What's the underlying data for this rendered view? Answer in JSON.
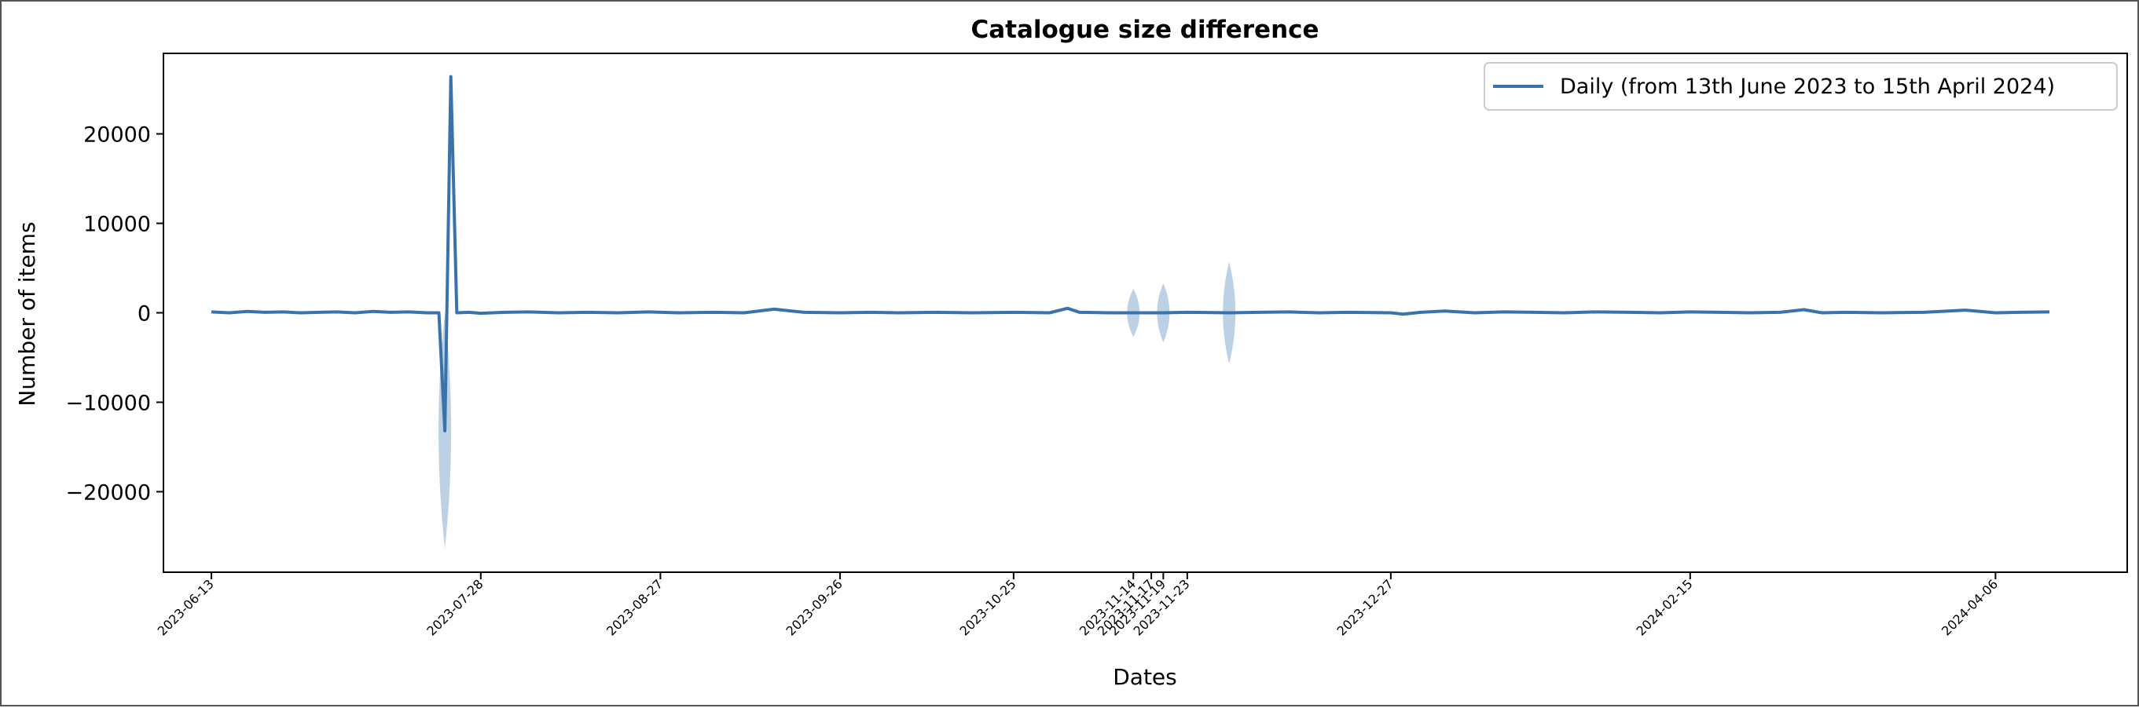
{
  "chart_data": {
    "type": "line",
    "title": "Catalogue size difference",
    "xlabel": "Dates",
    "ylabel": "Number of items",
    "xlim": [
      "2023-06-05",
      "2024-04-28"
    ],
    "ylim": [
      -29000,
      29000
    ],
    "yticks": [
      -20000,
      -10000,
      0,
      10000,
      20000
    ],
    "ytick_labels": [
      "−20000",
      "−10000",
      "0",
      "10000",
      "20000"
    ],
    "xticks": [
      "2023-06-13",
      "2023-07-28",
      "2023-08-27",
      "2023-09-26",
      "2023-10-25",
      "2023-11-14",
      "2023-11-17",
      "2023-11-19",
      "2023-11-23",
      "2023-12-27",
      "2024-02-15",
      "2024-04-06"
    ],
    "grid": false,
    "legend_position": "top-right",
    "series": [
      {
        "name": "Daily (from 13th June 2023 to 15th April 2024)",
        "color": "#3a72ab",
        "points": [
          [
            "2023-06-13",
            100
          ],
          [
            "2023-06-16",
            0
          ],
          [
            "2023-06-19",
            150
          ],
          [
            "2023-06-22",
            50
          ],
          [
            "2023-06-25",
            100
          ],
          [
            "2023-06-28",
            0
          ],
          [
            "2023-07-01",
            50
          ],
          [
            "2023-07-04",
            100
          ],
          [
            "2023-07-07",
            0
          ],
          [
            "2023-07-10",
            150
          ],
          [
            "2023-07-13",
            50
          ],
          [
            "2023-07-16",
            100
          ],
          [
            "2023-07-19",
            0
          ],
          [
            "2023-07-21",
            0
          ],
          [
            "2023-07-22",
            -13200
          ],
          [
            "2023-07-23",
            26400
          ],
          [
            "2023-07-24",
            0
          ],
          [
            "2023-07-26",
            50
          ],
          [
            "2023-07-28",
            -50
          ],
          [
            "2023-08-01",
            50
          ],
          [
            "2023-08-05",
            100
          ],
          [
            "2023-08-10",
            0
          ],
          [
            "2023-08-15",
            50
          ],
          [
            "2023-08-20",
            0
          ],
          [
            "2023-08-25",
            100
          ],
          [
            "2023-08-30",
            0
          ],
          [
            "2023-09-05",
            50
          ],
          [
            "2023-09-10",
            0
          ],
          [
            "2023-09-15",
            400
          ],
          [
            "2023-09-20",
            50
          ],
          [
            "2023-09-26",
            0
          ],
          [
            "2023-10-01",
            50
          ],
          [
            "2023-10-06",
            0
          ],
          [
            "2023-10-12",
            50
          ],
          [
            "2023-10-18",
            0
          ],
          [
            "2023-10-25",
            50
          ],
          [
            "2023-10-31",
            0
          ],
          [
            "2023-11-03",
            500
          ],
          [
            "2023-11-05",
            50
          ],
          [
            "2023-11-10",
            0
          ],
          [
            "2023-11-14",
            0
          ],
          [
            "2023-11-17",
            0
          ],
          [
            "2023-11-19",
            0
          ],
          [
            "2023-11-23",
            50
          ],
          [
            "2023-11-30",
            0
          ],
          [
            "2023-12-05",
            50
          ],
          [
            "2023-12-10",
            100
          ],
          [
            "2023-12-15",
            0
          ],
          [
            "2023-12-20",
            50
          ],
          [
            "2023-12-27",
            0
          ],
          [
            "2023-12-29",
            -150
          ],
          [
            "2024-01-01",
            50
          ],
          [
            "2024-01-05",
            200
          ],
          [
            "2024-01-10",
            0
          ],
          [
            "2024-01-15",
            100
          ],
          [
            "2024-01-20",
            50
          ],
          [
            "2024-01-25",
            0
          ],
          [
            "2024-01-30",
            100
          ],
          [
            "2024-02-05",
            50
          ],
          [
            "2024-02-10",
            0
          ],
          [
            "2024-02-15",
            100
          ],
          [
            "2024-02-20",
            50
          ],
          [
            "2024-02-25",
            0
          ],
          [
            "2024-03-01",
            50
          ],
          [
            "2024-03-05",
            350
          ],
          [
            "2024-03-08",
            0
          ],
          [
            "2024-03-12",
            50
          ],
          [
            "2024-03-18",
            0
          ],
          [
            "2024-03-25",
            50
          ],
          [
            "2024-04-01",
            300
          ],
          [
            "2024-04-06",
            0
          ],
          [
            "2024-04-10",
            50
          ],
          [
            "2024-04-15",
            100
          ]
        ]
      }
    ],
    "spread_bands": [
      {
        "date": "2023-07-22",
        "low": -26400,
        "high": 0
      },
      {
        "date": "2023-11-14",
        "low": -2700,
        "high": 2700
      },
      {
        "date": "2023-11-19",
        "low": -3300,
        "high": 3300
      },
      {
        "date": "2023-11-30",
        "low": -5700,
        "high": 5700
      }
    ],
    "band_color": "#a7c1dc"
  }
}
